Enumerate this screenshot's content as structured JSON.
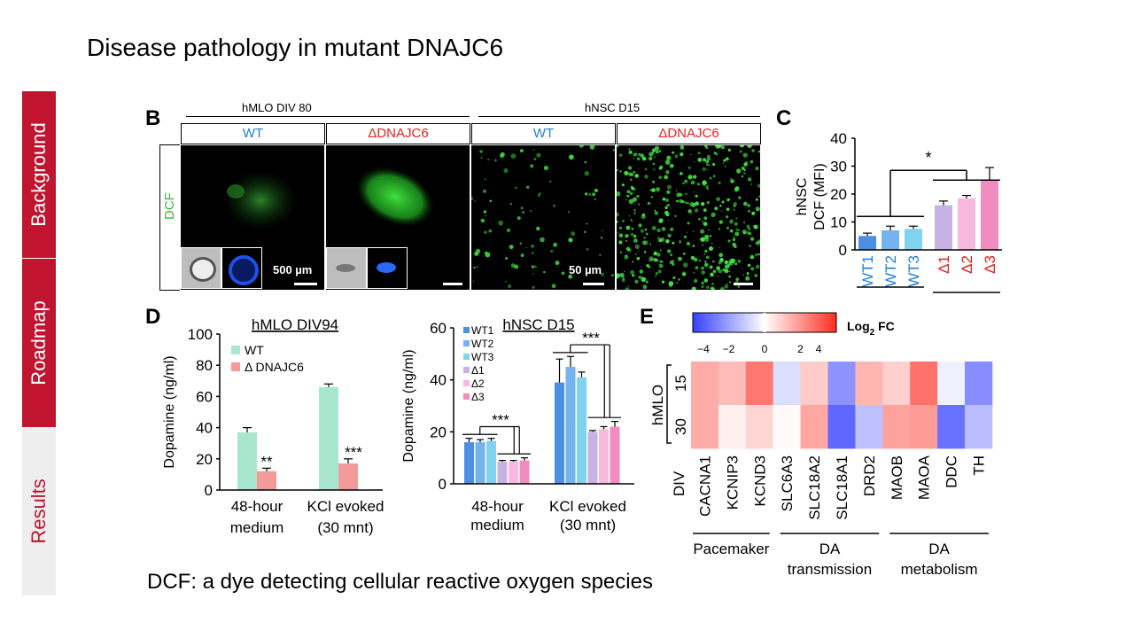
{
  "slide": {
    "title": "Disease pathology in mutant DNAJC6",
    "footnote": "DCF: a dye detecting cellular reactive oxygen species"
  },
  "nav": {
    "items": [
      {
        "label": "Background",
        "state": "active"
      },
      {
        "label": "Roadmap",
        "state": "active"
      },
      {
        "label": "Results",
        "state": "current"
      }
    ],
    "colors": {
      "active_bg": "#c0142f",
      "current_bg": "#eeeeee",
      "current_text": "#c0142f"
    }
  },
  "panel_b": {
    "label": "B",
    "group_left": "hMLO DIV 80",
    "group_right": "hNSC D15",
    "channel": "DCF",
    "columns": [
      {
        "label": "WT",
        "color": "#1f7fd1"
      },
      {
        "label": "ΔDNAJC6",
        "color": "#e8201c"
      },
      {
        "label": "WT",
        "color": "#1f7fd1"
      },
      {
        "label": "ΔDNAJC6",
        "color": "#e8201c"
      }
    ],
    "scale_left": "500 µm",
    "scale_right": "50 µm"
  },
  "panel_c": {
    "label": "C",
    "significance": "*"
  },
  "panel_d": {
    "label": "D"
  },
  "panel_e": {
    "label": "E",
    "colorbar_label": "Log",
    "colorbar_sub": "2",
    "colorbar_unit": " FC"
  },
  "chart_data": [
    {
      "id": "panel_c",
      "type": "bar",
      "ylabel": "hNSC DCF (MFI)",
      "ylim": [
        0,
        40
      ],
      "yticks": [
        0,
        10,
        20,
        30,
        40
      ],
      "categories": [
        "WT1",
        "WT2",
        "WT3",
        "Δ1",
        "Δ2",
        "Δ3"
      ],
      "values": [
        5,
        7,
        7.5,
        16,
        18.5,
        25
      ],
      "errors": [
        1,
        1.5,
        1,
        1.5,
        1,
        4.5
      ],
      "colors": [
        "#4d8fe3",
        "#74b3ee",
        "#7fd3ee",
        "#c7b3e3",
        "#f7b9dd",
        "#f08cc0"
      ],
      "label_colors": [
        "#1f7fd1",
        "#1f7fd1",
        "#1f7fd1",
        "#e8201c",
        "#e8201c",
        "#e8201c"
      ],
      "significance": "*"
    },
    {
      "id": "panel_d_left",
      "type": "bar",
      "title": "hMLO DIV94",
      "ylabel": "Dopamine (ng/ml)",
      "ylim": [
        0,
        100
      ],
      "yticks": [
        0,
        20,
        40,
        60,
        80,
        100
      ],
      "categories": [
        "48-hour medium",
        "KCl evoked (30 mnt)"
      ],
      "series": [
        {
          "name": "WT",
          "values": [
            37,
            66
          ],
          "errors": [
            3,
            2
          ],
          "color": "#a8e6cf"
        },
        {
          "name": "Δ DNAJC6",
          "values": [
            12,
            17
          ],
          "errors": [
            2,
            3
          ],
          "color": "#f49a9a",
          "significance": [
            "**",
            "***"
          ]
        }
      ]
    },
    {
      "id": "panel_d_right",
      "type": "bar",
      "title": "hNSC D15",
      "ylabel": "Dopamine (ng/ml)",
      "ylim": [
        0,
        60
      ],
      "yticks": [
        0,
        20,
        40,
        60
      ],
      "categories": [
        "48-hour medium",
        "KCl evoked (30 mnt)"
      ],
      "series": [
        {
          "name": "WT1",
          "values": [
            16,
            39
          ],
          "errors": [
            1.5,
            9
          ],
          "color": "#4d8fe3"
        },
        {
          "name": "WT2",
          "values": [
            16,
            45
          ],
          "errors": [
            1,
            4
          ],
          "color": "#74b3ee"
        },
        {
          "name": "WT3",
          "values": [
            16.5,
            41
          ],
          "errors": [
            1,
            2
          ],
          "color": "#7fd3ee"
        },
        {
          "name": "Δ1",
          "values": [
            8.5,
            20
          ],
          "errors": [
            0.5,
            0.5
          ],
          "color": "#c7b3e3"
        },
        {
          "name": "Δ2",
          "values": [
            8.5,
            21
          ],
          "errors": [
            0.5,
            1
          ],
          "color": "#f7b9dd"
        },
        {
          "name": "Δ3",
          "values": [
            9,
            22
          ],
          "errors": [
            1,
            2
          ],
          "color": "#f08cc0"
        }
      ],
      "significance": [
        "***",
        "***"
      ]
    },
    {
      "id": "panel_e",
      "type": "heatmap",
      "ylabel": "hMLO",
      "rows": [
        "15",
        "30"
      ],
      "row_axis_label": "DIV",
      "columns": [
        "CACNA1",
        "KCNIP3",
        "KCND3",
        "SLC6A3",
        "SLC18A2",
        "SLC18A1",
        "DRD2",
        "MAOB",
        "MAOA",
        "DDC",
        "TH"
      ],
      "values": [
        [
          1.6,
          1.3,
          2.6,
          -0.7,
          1.0,
          -2.3,
          1.4,
          0.9,
          2.7,
          -0.3,
          -2.4
        ],
        [
          1.6,
          0.3,
          0.8,
          0.1,
          1.7,
          -3.2,
          -1.3,
          1.8,
          1.9,
          -3.0,
          -1.4
        ]
      ],
      "colorbar_ticks": [
        -4,
        -2,
        0,
        2,
        4
      ],
      "colorbar_range": [
        -4,
        4
      ],
      "groups": [
        {
          "label": "Pacemaker",
          "columns": [
            "CACNA1",
            "KCNIP3",
            "KCND3"
          ]
        },
        {
          "label": "DA transmission",
          "columns": [
            "SLC6A3",
            "SLC18A2",
            "SLC18A1",
            "DRD2"
          ]
        },
        {
          "label": "DA metabolism",
          "columns": [
            "MAOB",
            "MAOA",
            "DDC",
            "TH"
          ]
        }
      ]
    }
  ]
}
